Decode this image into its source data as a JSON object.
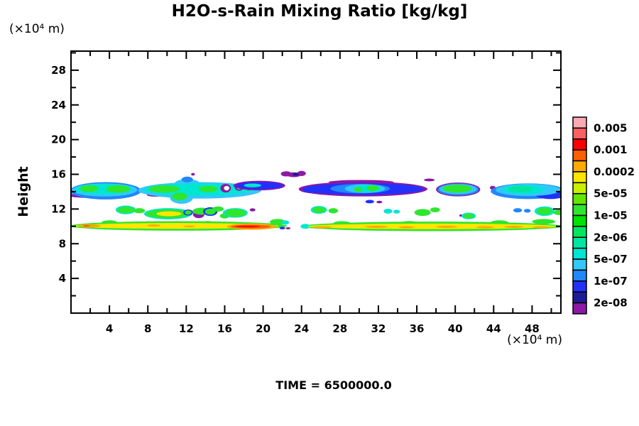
{
  "chart_data": {
    "type": "filled_contour",
    "title": "H2O-s-Rain Mixing Ratio [kg/kg]",
    "time_label": "TIME = 6500000.0",
    "ylabel": "Height",
    "y_unit_label": "(×10⁴ m)",
    "x_unit_label": "(×10⁴ m)",
    "xlim": [
      0,
      51
    ],
    "ylim": [
      0,
      30.2
    ],
    "x_major_ticks": [
      4,
      8,
      12,
      16,
      20,
      24,
      28,
      32,
      36,
      40,
      44,
      48
    ],
    "x_minor_ticks": [
      2,
      6,
      10,
      14,
      18,
      22,
      26,
      30,
      34,
      38,
      42,
      46,
      50
    ],
    "y_major_ticks": [
      4,
      8,
      12,
      16,
      20,
      24,
      28
    ],
    "y_minor_ticks": [
      2,
      6,
      10,
      14,
      18,
      22,
      26,
      30
    ],
    "colorbar": {
      "labels": [
        "0.005",
        "0.001",
        "0.0002",
        "5e-05",
        "1e-05",
        "2e-06",
        "5e-07",
        "1e-07",
        "2e-08"
      ],
      "colors": [
        "#faaab4",
        "#fa5f64",
        "#fa0000",
        "#ff5f00",
        "#ffaa00",
        "#ffe600",
        "#c8f000",
        "#64e600",
        "#2ee62e",
        "#00e200",
        "#00e65f",
        "#00e6a0",
        "#00e6d2",
        "#32c8fa",
        "#2287fa",
        "#2330fa",
        "#1c1c96",
        "#8c19a5"
      ]
    },
    "features": [
      [
        2.2,
        13.55,
        2.5,
        0.28,
        "#8c19a5"
      ],
      [
        8.9,
        13.6,
        1.0,
        0.18,
        "#8c19a5"
      ],
      [
        3.6,
        14.1,
        3.7,
        1.0,
        "#2287fa"
      ],
      [
        3.5,
        14.2,
        3.4,
        0.75,
        "#32c8fa"
      ],
      [
        3.4,
        14.3,
        3.0,
        0.6,
        "#00e6d2"
      ],
      [
        1.9,
        14.35,
        0.95,
        0.38,
        "#2ee62e"
      ],
      [
        4.9,
        14.3,
        1.25,
        0.42,
        "#2ee62e"
      ],
      [
        12.1,
        14.95,
        1.3,
        0.5,
        "#32c8fa"
      ],
      [
        13.4,
        14.15,
        6.4,
        0.95,
        "#32c8fa"
      ],
      [
        11.5,
        13.3,
        1.2,
        0.7,
        "#32c8fa"
      ],
      [
        13.2,
        14.25,
        5.6,
        0.7,
        "#00e6d2"
      ],
      [
        11.3,
        13.45,
        0.8,
        0.45,
        "#2ee62e"
      ],
      [
        9.7,
        14.3,
        1.6,
        0.42,
        "#2ee62e"
      ],
      [
        14.3,
        14.3,
        1.0,
        0.35,
        "#2ee62e"
      ],
      [
        12.1,
        15.4,
        0.6,
        0.33,
        "#2287fa"
      ],
      [
        12.7,
        16.0,
        0.2,
        0.15,
        "#8c19a5"
      ],
      [
        16.1,
        14.4,
        0.55,
        0.5,
        "#8c19a5"
      ],
      [
        16.2,
        14.4,
        0.28,
        0.26,
        "#ffffff"
      ],
      [
        17.5,
        14.5,
        0.45,
        0.4,
        "#8c19a5"
      ],
      [
        17.5,
        14.5,
        0.28,
        0.25,
        "#32c8fa"
      ],
      [
        18.5,
        14.45,
        0.35,
        0.3,
        "#8c19a5"
      ],
      [
        18.5,
        14.45,
        0.2,
        0.18,
        "#32c8fa"
      ],
      [
        19.6,
        14.7,
        2.7,
        0.55,
        "#8c19a5"
      ],
      [
        19.6,
        14.7,
        2.45,
        0.42,
        "#2330fa"
      ],
      [
        18.9,
        14.72,
        0.9,
        0.22,
        "#00e6d2"
      ],
      [
        22.4,
        16.05,
        0.55,
        0.3,
        "#8c19a5"
      ],
      [
        23.2,
        15.95,
        0.75,
        0.28,
        "#8c19a5"
      ],
      [
        24.0,
        16.1,
        0.45,
        0.3,
        "#8c19a5"
      ],
      [
        23.4,
        16.0,
        0.3,
        0.18,
        "#1c1c96"
      ],
      [
        25.6,
        14.2,
        1.8,
        0.4,
        "#8c19a5"
      ],
      [
        30.4,
        14.3,
        6.7,
        0.85,
        "#8c19a5"
      ],
      [
        30.2,
        15.1,
        3.4,
        0.25,
        "#8c19a5"
      ],
      [
        30.4,
        14.3,
        6.3,
        0.68,
        "#2330fa"
      ],
      [
        25.8,
        14.15,
        1.7,
        0.3,
        "#2330fa"
      ],
      [
        30.1,
        14.35,
        3.1,
        0.55,
        "#2287fa"
      ],
      [
        30.6,
        14.35,
        2.1,
        0.5,
        "#32c8fa"
      ],
      [
        30.9,
        14.35,
        1.4,
        0.42,
        "#00e6d2"
      ],
      [
        31.4,
        14.4,
        0.65,
        0.33,
        "#2ee62e"
      ],
      [
        29.9,
        14.25,
        0.45,
        0.28,
        "#2ee62e"
      ],
      [
        37.3,
        15.35,
        0.55,
        0.16,
        "#8c19a5"
      ],
      [
        40.3,
        14.25,
        2.3,
        0.8,
        "#8c19a5"
      ],
      [
        40.3,
        14.25,
        2.15,
        0.7,
        "#2287fa"
      ],
      [
        40.3,
        14.3,
        1.95,
        0.58,
        "#32c8fa"
      ],
      [
        40.2,
        14.35,
        1.55,
        0.45,
        "#2ee62e"
      ],
      [
        43.9,
        14.45,
        0.3,
        0.22,
        "#8c19a5"
      ],
      [
        47.6,
        14.05,
        3.9,
        0.9,
        "#2287fa"
      ],
      [
        49.9,
        13.6,
        1.5,
        0.45,
        "#2330fa"
      ],
      [
        47.6,
        14.2,
        3.4,
        0.7,
        "#32c8fa"
      ],
      [
        47.1,
        14.25,
        2.1,
        0.5,
        "#00e6d2"
      ],
      [
        46.8,
        14.3,
        1.3,
        0.4,
        "#00e6a0"
      ],
      [
        31.1,
        12.85,
        0.45,
        0.2,
        "#2330fa"
      ],
      [
        32.1,
        12.8,
        0.3,
        0.15,
        "#8c19a5"
      ],
      [
        5.7,
        11.9,
        1.05,
        0.5,
        "#00e6d2"
      ],
      [
        5.7,
        11.9,
        0.85,
        0.38,
        "#2ee62e"
      ],
      [
        7.1,
        11.8,
        0.6,
        0.3,
        "#2ee62e"
      ],
      [
        10.1,
        11.45,
        2.5,
        0.65,
        "#00e6d2"
      ],
      [
        10.1,
        11.45,
        2.3,
        0.52,
        "#2ee62e"
      ],
      [
        10.2,
        11.45,
        1.3,
        0.28,
        "#ffe600"
      ],
      [
        12.2,
        11.6,
        0.5,
        0.35,
        "#2330fa"
      ],
      [
        12.2,
        11.6,
        0.35,
        0.25,
        "#2ee62e"
      ],
      [
        13.3,
        11.4,
        0.6,
        0.45,
        "#8c19a5"
      ],
      [
        13.6,
        11.75,
        0.95,
        0.4,
        "#2ee62e"
      ],
      [
        14.5,
        11.7,
        0.75,
        0.5,
        "#2330fa"
      ],
      [
        14.5,
        11.7,
        0.55,
        0.35,
        "#2ee62e"
      ],
      [
        15.3,
        12.0,
        0.6,
        0.3,
        "#2ee62e"
      ],
      [
        16.0,
        11.2,
        0.5,
        0.3,
        "#2ee62e"
      ],
      [
        17.1,
        11.55,
        1.3,
        0.55,
        "#00e6d2"
      ],
      [
        17.1,
        11.55,
        1.1,
        0.45,
        "#2ee62e"
      ],
      [
        18.9,
        11.9,
        0.3,
        0.18,
        "#8c19a5"
      ],
      [
        21.5,
        10.5,
        0.8,
        0.35,
        "#2ee62e"
      ],
      [
        22.3,
        10.45,
        0.4,
        0.25,
        "#00e6d2"
      ],
      [
        25.8,
        11.9,
        0.85,
        0.45,
        "#00e6d2"
      ],
      [
        25.8,
        11.9,
        0.65,
        0.35,
        "#2ee62e"
      ],
      [
        27.3,
        11.8,
        0.5,
        0.3,
        "#2ee62e"
      ],
      [
        33.0,
        11.75,
        0.45,
        0.28,
        "#00e6d2"
      ],
      [
        33.9,
        11.7,
        0.35,
        0.22,
        "#00e6d2"
      ],
      [
        36.6,
        11.6,
        0.85,
        0.4,
        "#2ee62e"
      ],
      [
        37.9,
        11.9,
        0.5,
        0.28,
        "#2ee62e"
      ],
      [
        40.6,
        11.25,
        0.18,
        0.14,
        "#8c19a5"
      ],
      [
        41.4,
        11.2,
        0.75,
        0.38,
        "#00e6d2"
      ],
      [
        41.4,
        11.2,
        0.55,
        0.28,
        "#2ee62e"
      ],
      [
        46.5,
        11.85,
        0.45,
        0.25,
        "#2287fa"
      ],
      [
        47.5,
        11.8,
        0.35,
        0.22,
        "#2287fa"
      ],
      [
        49.3,
        11.75,
        1.05,
        0.55,
        "#00e6d2"
      ],
      [
        49.3,
        11.75,
        0.8,
        0.42,
        "#2ee62e"
      ],
      [
        50.8,
        11.6,
        0.6,
        0.3,
        "#2ee62e"
      ],
      [
        4.0,
        10.45,
        0.8,
        0.25,
        "#2ee62e"
      ],
      [
        14.2,
        10.4,
        0.7,
        0.22,
        "#2ee62e"
      ],
      [
        28.2,
        10.35,
        0.9,
        0.25,
        "#2ee62e"
      ],
      [
        35.2,
        10.4,
        0.8,
        0.22,
        "#2ee62e"
      ],
      [
        44.6,
        10.45,
        0.9,
        0.25,
        "#2ee62e"
      ],
      [
        49.2,
        10.55,
        1.2,
        0.3,
        "#2ee62e"
      ],
      [
        11.2,
        10.05,
        11.3,
        0.55,
        "#2ee62e"
      ],
      [
        37.6,
        10.0,
        13.6,
        0.55,
        "#2ee62e"
      ],
      [
        22.0,
        9.8,
        0.3,
        0.15,
        "#2330fa"
      ],
      [
        22.6,
        9.78,
        0.25,
        0.12,
        "#8c19a5"
      ],
      [
        24.4,
        10.0,
        0.5,
        0.28,
        "#00e6d2"
      ],
      [
        11.0,
        10.05,
        10.6,
        0.33,
        "#ffe600"
      ],
      [
        37.6,
        10.0,
        13.0,
        0.32,
        "#ffe600"
      ],
      [
        1.9,
        10.05,
        1.15,
        0.2,
        "#ffaa00"
      ],
      [
        1.6,
        10.05,
        0.35,
        0.11,
        "#ff5f00"
      ],
      [
        8.6,
        10.1,
        0.7,
        0.12,
        "#ffaa00"
      ],
      [
        12.3,
        10.0,
        0.6,
        0.11,
        "#ffaa00"
      ],
      [
        18.8,
        9.97,
        2.6,
        0.36,
        "#ffaa00"
      ],
      [
        18.7,
        9.97,
        2.1,
        0.22,
        "#ff5f00"
      ],
      [
        18.4,
        9.98,
        1.3,
        0.1,
        "#fa0000"
      ],
      [
        26.2,
        9.9,
        0.9,
        0.13,
        "#ffaa00"
      ],
      [
        31.8,
        9.95,
        1.2,
        0.13,
        "#ffaa00"
      ],
      [
        34.9,
        9.9,
        0.8,
        0.12,
        "#ffaa00"
      ],
      [
        39.1,
        9.95,
        1.1,
        0.13,
        "#ffaa00"
      ],
      [
        43.1,
        9.9,
        0.9,
        0.12,
        "#ffaa00"
      ],
      [
        46.1,
        9.95,
        1.0,
        0.13,
        "#ffaa00"
      ],
      [
        48.9,
        9.9,
        0.8,
        0.12,
        "#ffaa00"
      ]
    ]
  }
}
